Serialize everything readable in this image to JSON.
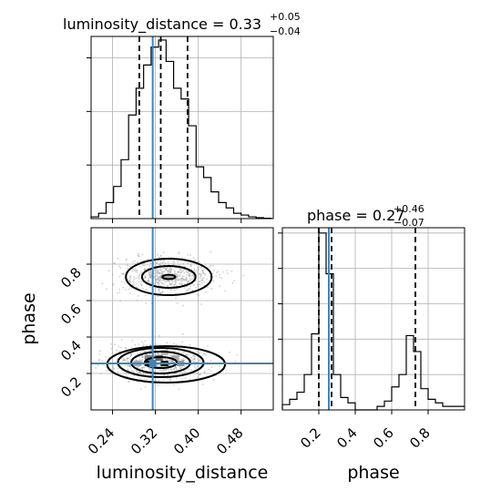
{
  "chart_data": [
    {
      "type": "histogram",
      "panel": "luminosity_distance-marginal",
      "title_main": "luminosity_distance = 0.33",
      "title_sup": "+0.05",
      "title_sub": "−0.04",
      "xlim": [
        0.2,
        0.54
      ],
      "ylim": [
        0,
        1.0
      ],
      "bin_edges": [
        0.2,
        0.214,
        0.228,
        0.242,
        0.256,
        0.27,
        0.284,
        0.298,
        0.312,
        0.326,
        0.34,
        0.354,
        0.368,
        0.382,
        0.396,
        0.41,
        0.424,
        0.438,
        0.452,
        0.466,
        0.48,
        0.494,
        0.508,
        0.522,
        0.536
      ],
      "counts": [
        0.01,
        0.03,
        0.09,
        0.18,
        0.33,
        0.58,
        0.73,
        0.86,
        0.96,
        1.0,
        0.88,
        0.73,
        0.67,
        0.52,
        0.29,
        0.23,
        0.15,
        0.09,
        0.06,
        0.03,
        0.02,
        0.01,
        0.005,
        0.002
      ],
      "quantiles": [
        0.29,
        0.33,
        0.38
      ],
      "truth": 0.315
    },
    {
      "type": "scatter",
      "panel": "phase-vs-luminosity_distance",
      "xlabel": "luminosity_distance",
      "ylabel": "phase",
      "xlim": [
        0.2,
        0.54
      ],
      "ylim": [
        0.0,
        1.0
      ],
      "xticks": [
        "0.24",
        "0.32",
        "0.40",
        "0.48"
      ],
      "xtick_values": [
        0.24,
        0.32,
        0.4,
        0.48
      ],
      "yticks": [
        "0.2",
        "0.4",
        "0.6",
        "0.8"
      ],
      "ytick_values": [
        0.2,
        0.4,
        0.6,
        0.8
      ],
      "clusters": [
        {
          "cx": 0.34,
          "cy": 0.74,
          "sx": 0.045,
          "sy": 0.05
        },
        {
          "cx": 0.325,
          "cy": 0.26,
          "sx": 0.05,
          "sy": 0.05
        }
      ],
      "contours": [
        {
          "cx": 0.345,
          "cy": 0.73,
          "rx": 0.012,
          "ry": 0.012
        },
        {
          "cx": 0.345,
          "cy": 0.73,
          "rx": 0.05,
          "ry": 0.06
        },
        {
          "cx": 0.345,
          "cy": 0.73,
          "rx": 0.08,
          "ry": 0.1
        },
        {
          "cx": 0.33,
          "cy": 0.26,
          "rx": 0.03,
          "ry": 0.03
        },
        {
          "cx": 0.33,
          "cy": 0.26,
          "rx": 0.055,
          "ry": 0.06
        },
        {
          "cx": 0.33,
          "cy": 0.26,
          "rx": 0.08,
          "ry": 0.08
        },
        {
          "cx": 0.34,
          "cy": 0.25,
          "rx": 0.11,
          "ry": 0.1
        }
      ],
      "truth": [
        0.315,
        0.255
      ]
    },
    {
      "type": "histogram",
      "panel": "phase-marginal",
      "title_main": "phase = 0.27",
      "title_sup": "+0.46",
      "title_sub": "−0.07",
      "xlabel": "phase",
      "xlim": [
        0.0,
        1.0
      ],
      "ylim": [
        0,
        1.0
      ],
      "xticks": [
        "0.2",
        "0.4",
        "0.6",
        "0.8"
      ],
      "xtick_values": [
        0.2,
        0.4,
        0.6,
        0.8
      ],
      "bin_edges": [
        0.0,
        0.04,
        0.08,
        0.12,
        0.16,
        0.2,
        0.24,
        0.28,
        0.32,
        0.36,
        0.4,
        0.44,
        0.48,
        0.52,
        0.56,
        0.6,
        0.64,
        0.68,
        0.72,
        0.76,
        0.8,
        0.84,
        0.88,
        0.92,
        0.96,
        1.0
      ],
      "counts": [
        0.03,
        0.06,
        0.1,
        0.2,
        0.43,
        1.0,
        0.77,
        0.2,
        0.07,
        0.04,
        0.0,
        0.0,
        0.0,
        0.02,
        0.05,
        0.13,
        0.2,
        0.42,
        0.33,
        0.12,
        0.06,
        0.04,
        0.02,
        0.02,
        0.02
      ],
      "quantiles": [
        0.2,
        0.27,
        0.73
      ],
      "truth": 0.255
    }
  ]
}
